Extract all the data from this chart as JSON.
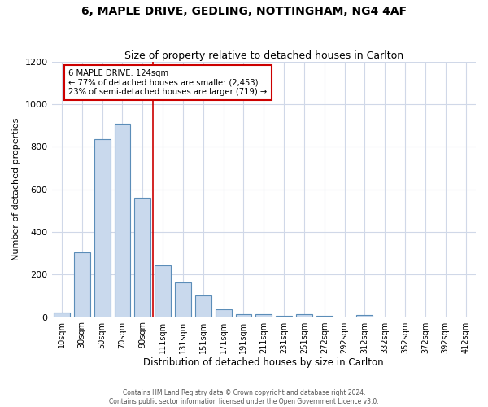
{
  "title1": "6, MAPLE DRIVE, GEDLING, NOTTINGHAM, NG4 4AF",
  "title2": "Size of property relative to detached houses in Carlton",
  "xlabel": "Distribution of detached houses by size in Carlton",
  "ylabel": "Number of detached properties",
  "bar_labels": [
    "10sqm",
    "30sqm",
    "50sqm",
    "70sqm",
    "90sqm",
    "111sqm",
    "131sqm",
    "151sqm",
    "171sqm",
    "191sqm",
    "211sqm",
    "231sqm",
    "251sqm",
    "272sqm",
    "292sqm",
    "312sqm",
    "332sqm",
    "352sqm",
    "372sqm",
    "392sqm",
    "412sqm"
  ],
  "bar_values": [
    20,
    305,
    835,
    910,
    560,
    243,
    163,
    103,
    37,
    15,
    12,
    5,
    15,
    5,
    0,
    10,
    0,
    0,
    0,
    0,
    0
  ],
  "bar_color": "#c9d9ed",
  "bar_edge_color": "#5b8db8",
  "bar_edge_width": 0.8,
  "property_bar_index": 5,
  "ylim": [
    0,
    1200
  ],
  "yticks": [
    0,
    200,
    400,
    600,
    800,
    1000,
    1200
  ],
  "annotation_text": "6 MAPLE DRIVE: 124sqm\n← 77% of detached houses are smaller (2,453)\n23% of semi-detached houses are larger (719) →",
  "annotation_box_color": "white",
  "annotation_box_edge_color": "#cc0000",
  "red_line_color": "#cc0000",
  "grid_color": "#d0d8e8",
  "background_color": "white",
  "footnote1": "Contains HM Land Registry data © Crown copyright and database right 2024.",
  "footnote2": "Contains public sector information licensed under the Open Government Licence v3.0."
}
